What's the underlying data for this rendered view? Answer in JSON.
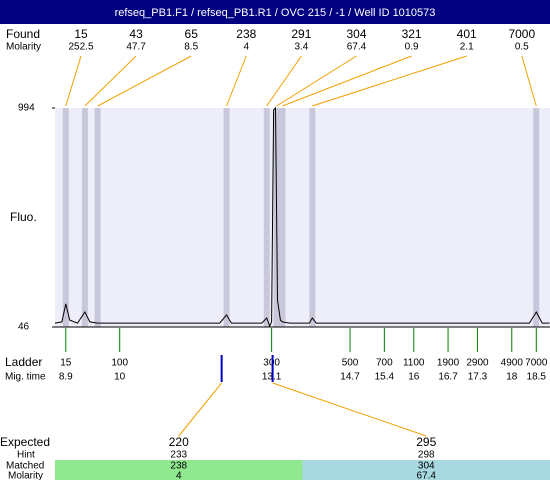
{
  "chart_data": {
    "type": "line",
    "title": "refseq_PB1.F1 / refseq_PB1.R1 / OVC 215 / -1 / Well ID 1010573",
    "y_label": "Fluo.",
    "xlim": [
      8.68,
      18.78
    ],
    "ylim": [
      46,
      994
    ],
    "yticks": [
      46,
      994
    ],
    "trace": {
      "color": "#000000",
      "x": [
        8.68,
        8.82,
        8.9,
        8.98,
        9.14,
        9.29,
        9.39,
        9.55,
        12.04,
        12.18,
        12.28,
        12.9,
        13.0,
        13.06,
        13.1,
        13.14,
        13.18,
        13.22,
        13.28,
        13.32,
        13.47,
        13.87,
        13.93,
        14.01,
        18.36,
        18.5,
        18.62,
        18.77
      ],
      "y": [
        63,
        68,
        146,
        76,
        63,
        111,
        68,
        63,
        63,
        98,
        63,
        63,
        85,
        50,
        68,
        985,
        994,
        163,
        76,
        68,
        63,
        63,
        85,
        63,
        63,
        111,
        63,
        63
      ]
    },
    "found": {
      "label": "Found",
      "molarity_label": "Molarity",
      "color": "#f0a000",
      "sizes": [
        15,
        43,
        65,
        238,
        291,
        304,
        321,
        401,
        7000
      ],
      "molarity": [
        252.5,
        47.7,
        8.5,
        4,
        3.4,
        67.4,
        0.9,
        2.1,
        0.5
      ],
      "mig_time": [
        8.9,
        9.29,
        9.55,
        12.18,
        13.0,
        13.2,
        13.32,
        13.93,
        18.5
      ]
    },
    "ladder": {
      "label": "Ladder",
      "mig_label": "Mig. time",
      "color": "#008000",
      "sizes": [
        15,
        100,
        300,
        500,
        700,
        1100,
        1900,
        2900,
        4900,
        7000
      ],
      "mig_time": [
        8.9,
        10,
        13.1,
        14.7,
        15.4,
        16,
        16.7,
        17.3,
        18,
        18.5
      ]
    },
    "expected": {
      "label": "Expected",
      "hint_label": "Hint",
      "matched_label": "Matched",
      "molarity_label": "Molarity",
      "marker_color": "#0000c0",
      "row_colors": [
        "#90e890",
        "#a8d8e0"
      ],
      "sizes": [
        220,
        295
      ],
      "hint": [
        233,
        298
      ],
      "matched": [
        238,
        304
      ],
      "molarity": [
        4,
        67.4
      ],
      "mig_time": [
        12.08,
        13.12
      ]
    }
  }
}
